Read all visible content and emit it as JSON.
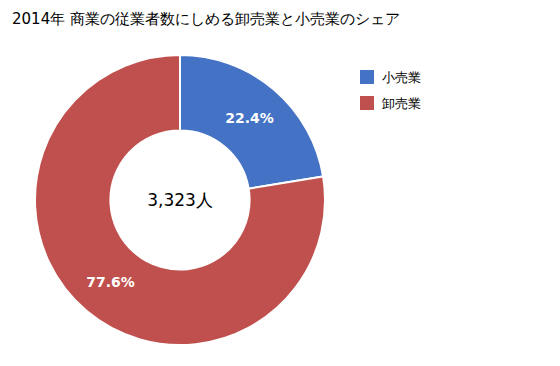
{
  "chart_data": {
    "type": "donut",
    "title": "2014年 商業の従業者数にしめる卸売業と小売業のシェア",
    "categories": [
      "小売業",
      "卸売業"
    ],
    "values": [
      22.4,
      77.6
    ],
    "value_labels": [
      "22.4%",
      "77.6%"
    ],
    "colors": [
      "#4472C4",
      "#C0504D"
    ],
    "annotations": [
      "3,323人"
    ],
    "data_labels": true,
    "legend": "right"
  }
}
